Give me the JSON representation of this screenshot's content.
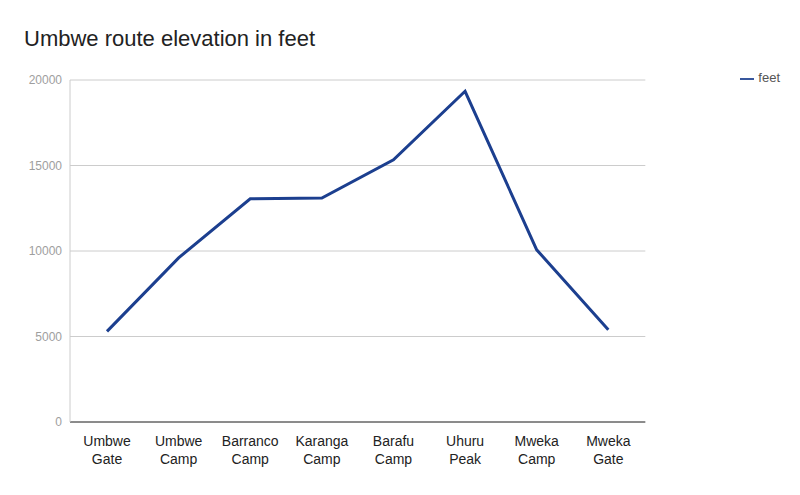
{
  "chart_data": {
    "type": "line",
    "title": "Umbwe route elevation in feet",
    "categories": [
      "Umbwe Gate",
      "Umbwe Camp",
      "Barranco Camp",
      "Karanga Camp",
      "Barafu Camp",
      "Uhuru Peak",
      "Mweka Camp",
      "Mweka Gate"
    ],
    "series": [
      {
        "name": "feet",
        "color": "#1c3f8f",
        "values": [
          5300,
          9600,
          13050,
          13100,
          15330,
          19340,
          10070,
          5400
        ]
      }
    ],
    "ylim": [
      0,
      20000
    ],
    "yticks": [
      0,
      5000,
      10000,
      15000,
      20000
    ],
    "grid": true,
    "legend": "top-right",
    "marker": "none"
  }
}
